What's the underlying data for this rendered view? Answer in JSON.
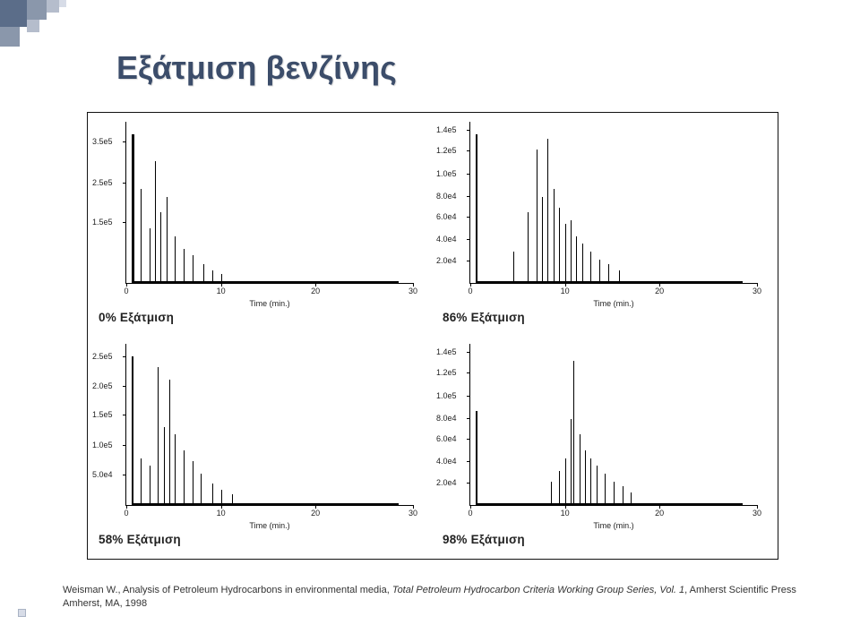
{
  "title": "Εξάτμιση βενζίνης",
  "deco_colors": [
    "#5b6d89",
    "#8a97ab",
    "#b5bdcc",
    "#d7dce7"
  ],
  "charts": {
    "q1": {
      "caption": "0% Εξάτμιση",
      "xlabel": "Time (min.)",
      "yticks": [
        {
          "v": "3.5e5",
          "p": 0.88
        },
        {
          "v": "2.5e5",
          "p": 0.62
        },
        {
          "v": "1.5e5",
          "p": 0.38
        }
      ],
      "xticks": [
        {
          "v": "0",
          "p": 0
        },
        {
          "v": "10",
          "p": 0.33
        },
        {
          "v": "20",
          "p": 0.66
        },
        {
          "v": "30",
          "p": 1
        }
      ],
      "baseline_from": 0.02,
      "baseline_to": 0.95,
      "peaks": [
        {
          "x": 0.02,
          "h": 0.95,
          "w": 3
        },
        {
          "x": 0.05,
          "h": 0.6,
          "w": 1
        },
        {
          "x": 0.08,
          "h": 0.35,
          "w": 1
        },
        {
          "x": 0.1,
          "h": 0.78,
          "w": 1
        },
        {
          "x": 0.12,
          "h": 0.45,
          "w": 1
        },
        {
          "x": 0.14,
          "h": 0.55,
          "w": 1
        },
        {
          "x": 0.17,
          "h": 0.3,
          "w": 1
        },
        {
          "x": 0.2,
          "h": 0.22,
          "w": 1
        },
        {
          "x": 0.23,
          "h": 0.18,
          "w": 1
        },
        {
          "x": 0.27,
          "h": 0.12,
          "w": 1
        },
        {
          "x": 0.3,
          "h": 0.08,
          "w": 1
        },
        {
          "x": 0.33,
          "h": 0.06,
          "w": 1
        }
      ]
    },
    "q2": {
      "caption": "86% Εξάτμιση",
      "xlabel": "Time (min.)",
      "yticks": [
        {
          "v": "1.4e5",
          "p": 0.95
        },
        {
          "v": "1.2e5",
          "p": 0.82
        },
        {
          "v": "1.0e5",
          "p": 0.68
        },
        {
          "v": "8.0e4",
          "p": 0.54
        },
        {
          "v": "6.0e4",
          "p": 0.41
        },
        {
          "v": "4.0e4",
          "p": 0.27
        },
        {
          "v": "2.0e4",
          "p": 0.14
        }
      ],
      "xticks": [
        {
          "v": "0",
          "p": 0
        },
        {
          "v": "10",
          "p": 0.33
        },
        {
          "v": "20",
          "p": 0.66
        },
        {
          "v": "30",
          "p": 1
        }
      ],
      "baseline_from": 0.02,
      "baseline_to": 0.95,
      "peaks": [
        {
          "x": 0.02,
          "h": 0.95,
          "w": 2
        },
        {
          "x": 0.15,
          "h": 0.2,
          "w": 1
        },
        {
          "x": 0.2,
          "h": 0.45,
          "w": 1
        },
        {
          "x": 0.23,
          "h": 0.85,
          "w": 1
        },
        {
          "x": 0.25,
          "h": 0.55,
          "w": 1
        },
        {
          "x": 0.27,
          "h": 0.92,
          "w": 1
        },
        {
          "x": 0.29,
          "h": 0.6,
          "w": 1
        },
        {
          "x": 0.31,
          "h": 0.48,
          "w": 1
        },
        {
          "x": 0.33,
          "h": 0.38,
          "w": 1
        },
        {
          "x": 0.35,
          "h": 0.4,
          "w": 1
        },
        {
          "x": 0.37,
          "h": 0.3,
          "w": 1
        },
        {
          "x": 0.39,
          "h": 0.25,
          "w": 1
        },
        {
          "x": 0.42,
          "h": 0.2,
          "w": 1
        },
        {
          "x": 0.45,
          "h": 0.15,
          "w": 1
        },
        {
          "x": 0.48,
          "h": 0.12,
          "w": 1
        },
        {
          "x": 0.52,
          "h": 0.08,
          "w": 1
        }
      ]
    },
    "q3": {
      "caption": "58% Εξάτμιση",
      "xlabel": "Time (min.)",
      "yticks": [
        {
          "v": "2.5e5",
          "p": 0.92
        },
        {
          "v": "2.0e5",
          "p": 0.74
        },
        {
          "v": "1.5e5",
          "p": 0.56
        },
        {
          "v": "1.0e5",
          "p": 0.37
        },
        {
          "v": "5.0e4",
          "p": 0.19
        }
      ],
      "xticks": [
        {
          "v": "0",
          "p": 0
        },
        {
          "v": "10",
          "p": 0.33
        },
        {
          "v": "20",
          "p": 0.66
        },
        {
          "v": "30",
          "p": 1
        }
      ],
      "baseline_from": 0.02,
      "baseline_to": 0.95,
      "peaks": [
        {
          "x": 0.02,
          "h": 0.95,
          "w": 2
        },
        {
          "x": 0.05,
          "h": 0.3,
          "w": 1
        },
        {
          "x": 0.08,
          "h": 0.25,
          "w": 1
        },
        {
          "x": 0.11,
          "h": 0.88,
          "w": 1
        },
        {
          "x": 0.13,
          "h": 0.5,
          "w": 1
        },
        {
          "x": 0.15,
          "h": 0.8,
          "w": 1
        },
        {
          "x": 0.17,
          "h": 0.45,
          "w": 1
        },
        {
          "x": 0.2,
          "h": 0.35,
          "w": 1
        },
        {
          "x": 0.23,
          "h": 0.28,
          "w": 1
        },
        {
          "x": 0.26,
          "h": 0.2,
          "w": 1
        },
        {
          "x": 0.3,
          "h": 0.14,
          "w": 1
        },
        {
          "x": 0.33,
          "h": 0.1,
          "w": 1
        },
        {
          "x": 0.37,
          "h": 0.07,
          "w": 1
        }
      ]
    },
    "q4": {
      "caption": "98% Εξάτμιση",
      "xlabel": "Time (min.)",
      "yticks": [
        {
          "v": "1.4e5",
          "p": 0.95
        },
        {
          "v": "1.2e5",
          "p": 0.82
        },
        {
          "v": "1.0e5",
          "p": 0.68
        },
        {
          "v": "8.0e4",
          "p": 0.54
        },
        {
          "v": "6.0e4",
          "p": 0.41
        },
        {
          "v": "4.0e4",
          "p": 0.27
        },
        {
          "v": "2.0e4",
          "p": 0.14
        }
      ],
      "xticks": [
        {
          "v": "0",
          "p": 0
        },
        {
          "v": "10",
          "p": 0.33
        },
        {
          "v": "20",
          "p": 0.66
        },
        {
          "v": "30",
          "p": 1
        }
      ],
      "baseline_from": 0.02,
      "baseline_to": 0.95,
      "peaks": [
        {
          "x": 0.02,
          "h": 0.6,
          "w": 2
        },
        {
          "x": 0.28,
          "h": 0.15,
          "w": 1
        },
        {
          "x": 0.31,
          "h": 0.22,
          "w": 1
        },
        {
          "x": 0.33,
          "h": 0.3,
          "w": 1
        },
        {
          "x": 0.35,
          "h": 0.55,
          "w": 1
        },
        {
          "x": 0.36,
          "h": 0.92,
          "w": 1
        },
        {
          "x": 0.38,
          "h": 0.45,
          "w": 1
        },
        {
          "x": 0.4,
          "h": 0.35,
          "w": 1
        },
        {
          "x": 0.42,
          "h": 0.3,
          "w": 1
        },
        {
          "x": 0.44,
          "h": 0.25,
          "w": 1
        },
        {
          "x": 0.47,
          "h": 0.2,
          "w": 1
        },
        {
          "x": 0.5,
          "h": 0.15,
          "w": 1
        },
        {
          "x": 0.53,
          "h": 0.12,
          "w": 1
        },
        {
          "x": 0.56,
          "h": 0.08,
          "w": 1
        }
      ]
    }
  },
  "citation": {
    "pre": "Weisman W., Analysis of Petroleum Hydrocarbons in environmental media, ",
    "ital": "Total Petroleum Hydrocarbon Criteria Working Group Series, Vol. 1",
    "post": ", Amherst Scientific Press Amherst, MA, 1998"
  }
}
